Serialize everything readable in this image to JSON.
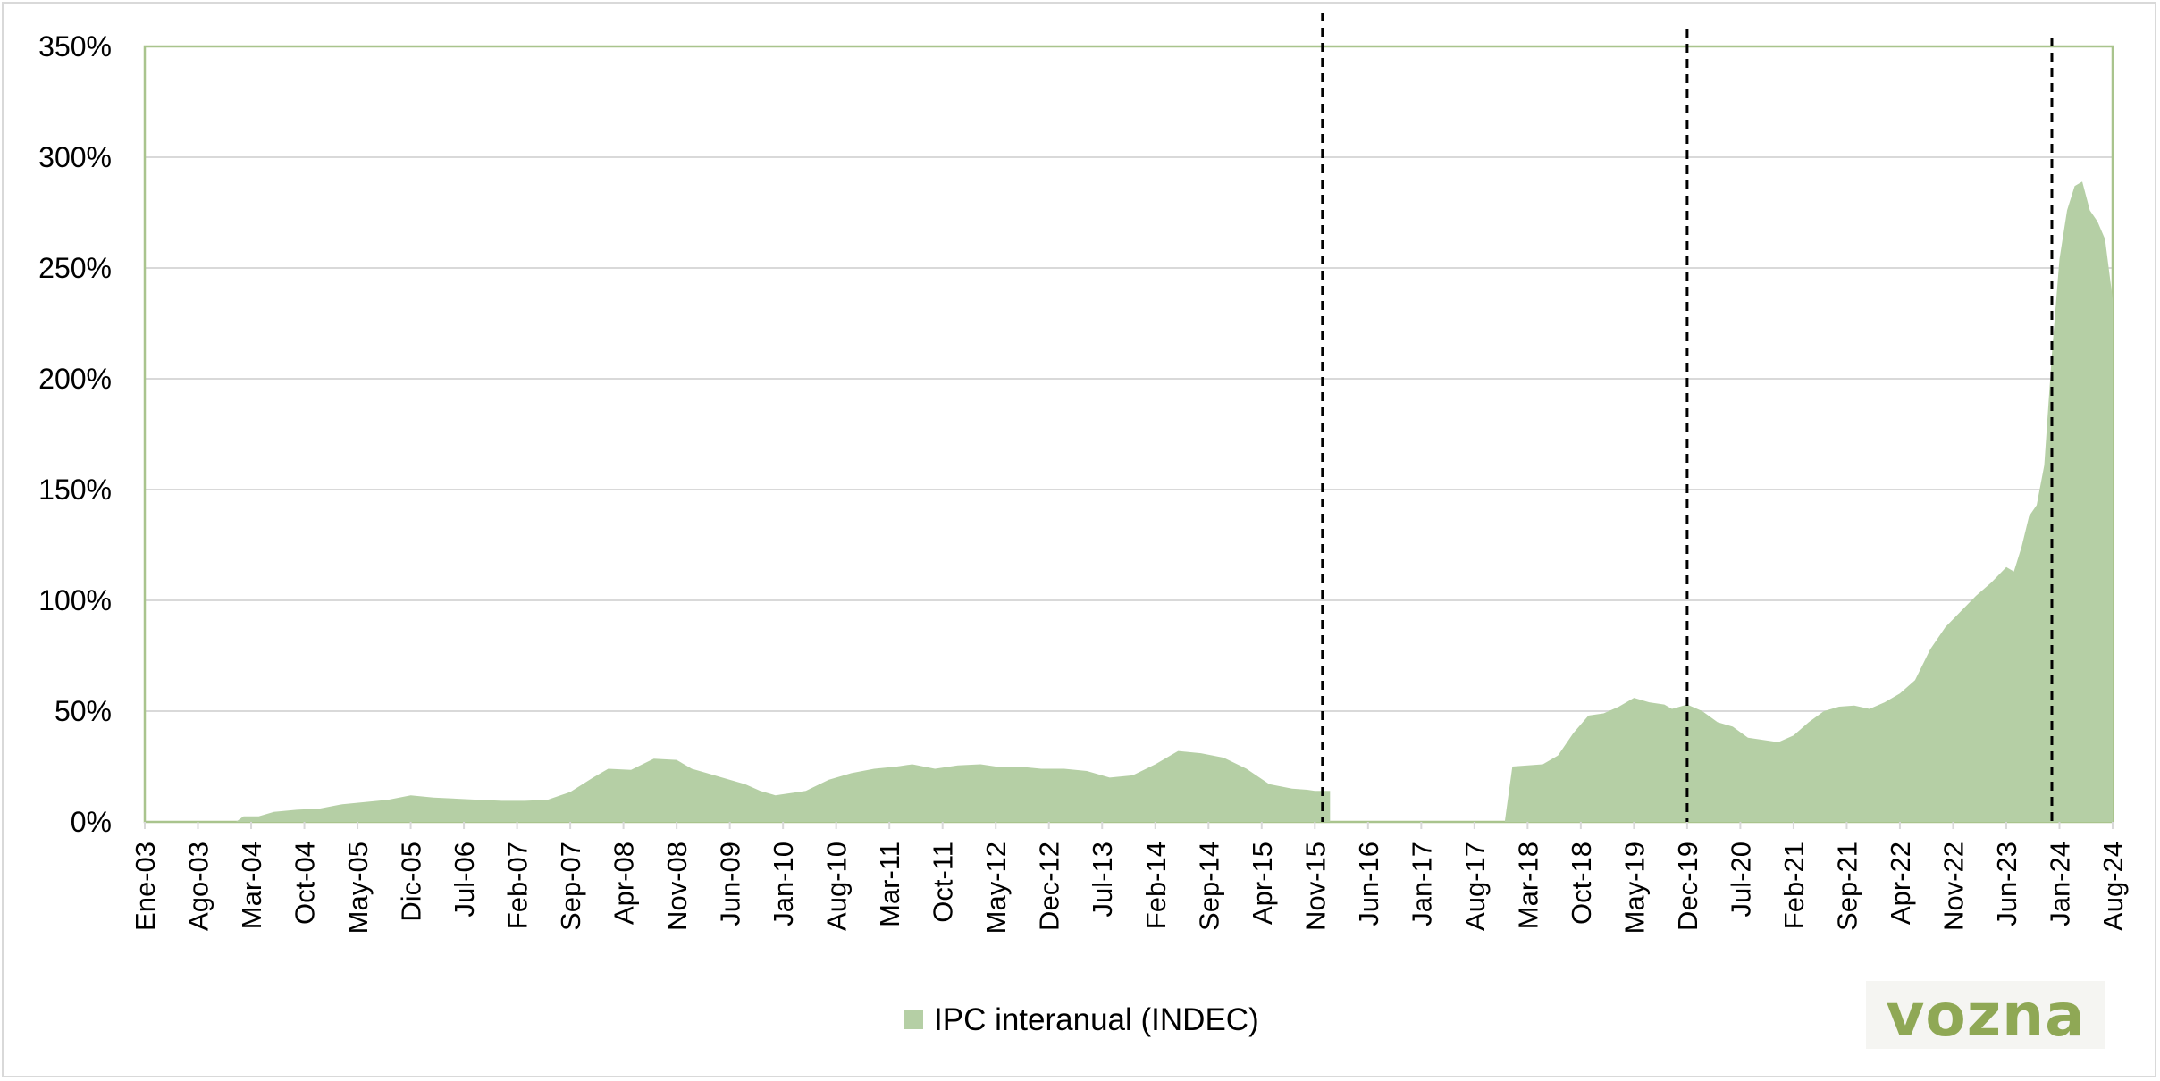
{
  "chart_data": {
    "type": "area",
    "title": "",
    "xlabel": "",
    "ylabel": "",
    "x_tick_labels": [
      "Ene-03",
      "Ago-03",
      "Mar-04",
      "Oct-04",
      "May-05",
      "Dic-05",
      "Jul-06",
      "Feb-07",
      "Sep-07",
      "Apr-08",
      "Nov-08",
      "Jun-09",
      "Jan-10",
      "Aug-10",
      "Mar-11",
      "Oct-11",
      "May-12",
      "Dec-12",
      "Jul-13",
      "Feb-14",
      "Sep-14",
      "Apr-15",
      "Nov-15",
      "Jun-16",
      "Jan-17",
      "Aug-17",
      "Mar-18",
      "Oct-18",
      "May-19",
      "Dec-19",
      "Jul-20",
      "Feb-21",
      "Sep-21",
      "Apr-22",
      "Nov-22",
      "Jun-23",
      "Jan-24",
      "Aug-24"
    ],
    "y_tick_labels": [
      "0%",
      "50%",
      "100%",
      "150%",
      "200%",
      "250%",
      "300%",
      "350%"
    ],
    "ylim": [
      0,
      350
    ],
    "x_start": "2003-01",
    "x_end": "2024-08",
    "grid": true,
    "legend_position": "bottom",
    "reference_lines": [
      "2015-12",
      "2019-12",
      "2023-12"
    ],
    "series": [
      {
        "name": "IPC interanual (INDEC)",
        "color": "#b5cfa5",
        "points": [
          [
            "2004-01",
            0
          ],
          [
            "2004-02",
            2.5
          ],
          [
            "2004-04",
            2.5
          ],
          [
            "2004-06",
            4.5
          ],
          [
            "2004-09",
            5.5
          ],
          [
            "2004-12",
            6
          ],
          [
            "2005-03",
            8
          ],
          [
            "2005-06",
            9
          ],
          [
            "2005-09",
            10
          ],
          [
            "2005-12",
            12
          ],
          [
            "2006-03",
            11
          ],
          [
            "2006-06",
            10.5
          ],
          [
            "2006-09",
            10
          ],
          [
            "2006-12",
            9.5
          ],
          [
            "2007-03",
            9.5
          ],
          [
            "2007-06",
            10
          ],
          [
            "2007-09",
            13.5
          ],
          [
            "2007-12",
            20
          ],
          [
            "2008-02",
            24
          ],
          [
            "2008-05",
            23.5
          ],
          [
            "2008-08",
            28.5
          ],
          [
            "2008-11",
            28
          ],
          [
            "2009-01",
            24
          ],
          [
            "2009-03",
            22
          ],
          [
            "2009-05",
            20
          ],
          [
            "2009-08",
            17
          ],
          [
            "2009-10",
            14
          ],
          [
            "2009-12",
            12
          ],
          [
            "2010-02",
            13
          ],
          [
            "2010-04",
            14
          ],
          [
            "2010-07",
            19
          ],
          [
            "2010-10",
            22
          ],
          [
            "2011-01",
            24
          ],
          [
            "2011-04",
            25
          ],
          [
            "2011-06",
            26
          ],
          [
            "2011-09",
            24
          ],
          [
            "2011-12",
            25.5
          ],
          [
            "2012-03",
            26
          ],
          [
            "2012-05",
            25
          ],
          [
            "2012-08",
            25
          ],
          [
            "2012-11",
            24
          ],
          [
            "2013-02",
            24
          ],
          [
            "2013-05",
            23
          ],
          [
            "2013-08",
            20
          ],
          [
            "2013-11",
            21
          ],
          [
            "2014-02",
            26
          ],
          [
            "2014-05",
            32
          ],
          [
            "2014-08",
            31
          ],
          [
            "2014-11",
            29
          ],
          [
            "2015-02",
            24
          ],
          [
            "2015-05",
            17
          ],
          [
            "2015-08",
            15
          ],
          [
            "2015-10",
            14.5
          ],
          [
            "2015-11",
            14
          ],
          [
            "2016-01",
            14
          ],
          [
            "2016-01",
            0
          ],
          [
            "2017-12",
            0
          ],
          [
            "2018-01",
            25
          ],
          [
            "2018-03",
            25.5
          ],
          [
            "2018-05",
            26
          ],
          [
            "2018-07",
            30
          ],
          [
            "2018-09",
            40
          ],
          [
            "2018-11",
            48
          ],
          [
            "2019-01",
            49
          ],
          [
            "2019-03",
            52
          ],
          [
            "2019-05",
            56
          ],
          [
            "2019-07",
            54
          ],
          [
            "2019-09",
            53
          ],
          [
            "2019-10",
            51
          ],
          [
            "2019-12",
            53
          ],
          [
            "2020-02",
            50
          ],
          [
            "2020-04",
            45
          ],
          [
            "2020-06",
            43
          ],
          [
            "2020-08",
            38
          ],
          [
            "2020-10",
            37
          ],
          [
            "2020-12",
            36
          ],
          [
            "2021-02",
            39
          ],
          [
            "2021-04",
            45
          ],
          [
            "2021-06",
            50
          ],
          [
            "2021-08",
            52
          ],
          [
            "2021-10",
            52.5
          ],
          [
            "2021-12",
            51
          ],
          [
            "2022-02",
            54
          ],
          [
            "2022-04",
            58
          ],
          [
            "2022-06",
            64
          ],
          [
            "2022-08",
            78
          ],
          [
            "2022-10",
            88
          ],
          [
            "2022-12",
            95
          ],
          [
            "2023-02",
            102
          ],
          [
            "2023-04",
            108
          ],
          [
            "2023-06",
            115
          ],
          [
            "2023-07",
            113
          ],
          [
            "2023-08",
            124
          ],
          [
            "2023-09",
            138
          ],
          [
            "2023-10",
            143
          ],
          [
            "2023-11",
            161
          ],
          [
            "2023-12",
            211
          ],
          [
            "2024-01",
            254
          ],
          [
            "2024-02",
            276
          ],
          [
            "2024-03",
            287
          ],
          [
            "2024-04",
            289
          ],
          [
            "2024-05",
            276
          ],
          [
            "2024-06",
            271
          ],
          [
            "2024-07",
            263
          ],
          [
            "2024-08",
            236
          ]
        ]
      }
    ]
  },
  "legend": {
    "label": "IPC interanual (INDEC)"
  },
  "logo": {
    "text": "vozna"
  }
}
